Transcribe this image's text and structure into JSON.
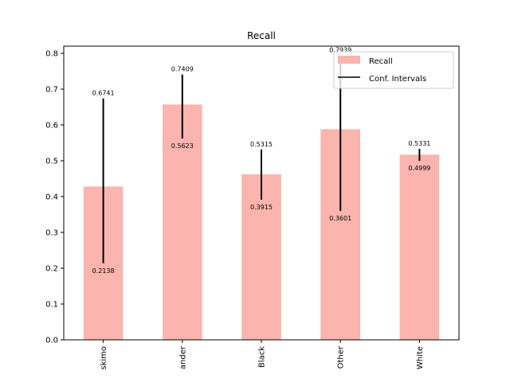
{
  "chart_data": {
    "type": "bar",
    "title": "Recall",
    "xlabel": "",
    "ylabel": "",
    "categories": [
      "skimo",
      "ander",
      "Black",
      "Other",
      "White"
    ],
    "series": [
      {
        "name": "Recall",
        "color": "#fbb4ae",
        "values": [
          0.428,
          0.657,
          0.462,
          0.588,
          0.517
        ]
      }
    ],
    "confidence_intervals": {
      "name": "Conf. Intervals",
      "color": "#000000",
      "lower": [
        0.2138,
        0.5623,
        0.3915,
        0.3601,
        0.4999
      ],
      "upper": [
        0.6741,
        0.7409,
        0.5315,
        0.7939,
        0.5331
      ],
      "lower_labels": [
        "0.2138",
        "0.5623",
        "0.3915",
        "0.3601",
        "0.4999"
      ],
      "upper_labels": [
        "0.6741",
        "0.7409",
        "0.5315",
        "0.7939",
        "0.5331"
      ]
    },
    "ylim": [
      0.0,
      0.82
    ],
    "yticks": [
      0.0,
      0.1,
      0.2,
      0.3,
      0.4,
      0.5,
      0.6,
      0.7,
      0.8
    ],
    "ytick_labels": [
      "0.0",
      "0.1",
      "0.2",
      "0.3",
      "0.4",
      "0.5",
      "0.6",
      "0.7",
      "0.8"
    ],
    "grid": false,
    "legend": {
      "placement": "upper-right",
      "entries": [
        "Recall",
        "Conf. Intervals"
      ]
    }
  }
}
